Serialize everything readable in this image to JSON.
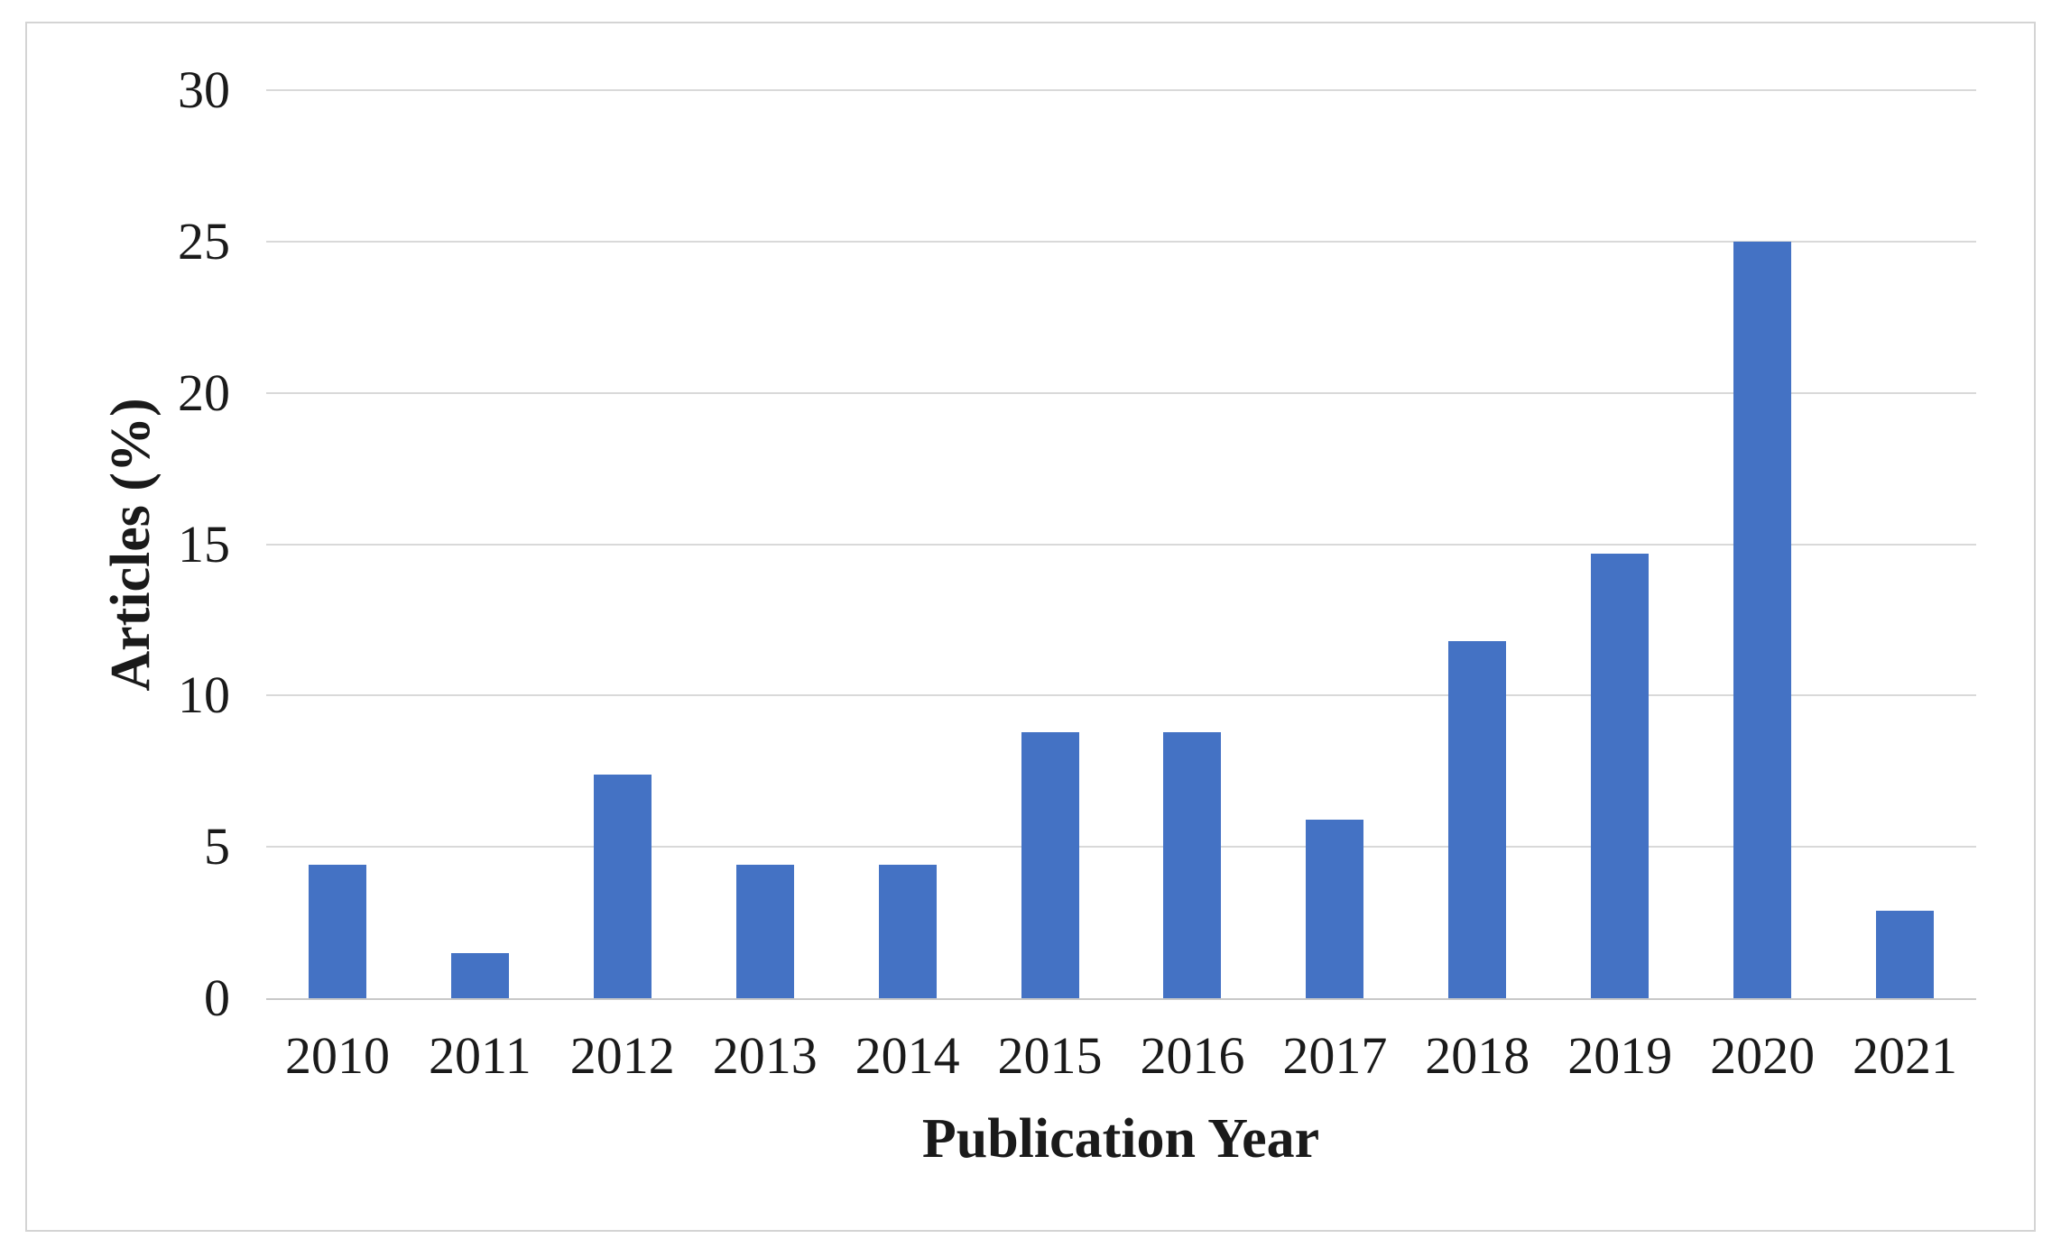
{
  "chart_data": {
    "type": "bar",
    "title": "",
    "categories": [
      "2010",
      "2011",
      "2012",
      "2013",
      "2014",
      "2015",
      "2016",
      "2017",
      "2018",
      "2019",
      "2020",
      "2021"
    ],
    "values": [
      4.4,
      1.5,
      7.4,
      4.4,
      4.4,
      8.8,
      8.8,
      5.9,
      11.8,
      14.7,
      25.0,
      2.9
    ],
    "xlabel": "Publication Year",
    "ylabel": "Articles (%)",
    "ylim": [
      0,
      30
    ],
    "yticks": [
      0,
      5,
      10,
      15,
      20,
      25,
      30
    ],
    "grid": "horizontal",
    "legend": "none",
    "colors": {
      "bar": "#4472c4",
      "gridline": "#d9d9d9",
      "baseline": "#c8c8c8",
      "figure_border": "#d4d4d4",
      "text": "#1a1a1a",
      "background": "#ffffff"
    }
  }
}
